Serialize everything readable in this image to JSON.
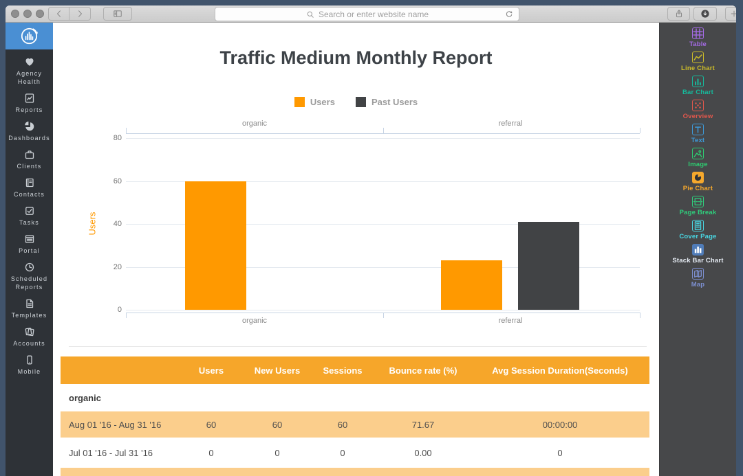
{
  "browser": {
    "search_placeholder": "Search or enter website name",
    "traffic_lights": [
      "close",
      "minimize",
      "zoom"
    ]
  },
  "colors": {
    "accent_orange": "#f6a62a",
    "row_highlight": "#fbce8c",
    "bar_orange": "#ff9900",
    "bar_dark": "#414345",
    "sidebar_bg": "#2e3237",
    "panel_bg": "#47484a",
    "logo_blue": "#4a8fd3",
    "frame_navy": "#41546c"
  },
  "sidebar": {
    "items": [
      {
        "label": "Agency Health",
        "icon": "heart-icon"
      },
      {
        "label": "Reports",
        "icon": "report-chart-icon"
      },
      {
        "label": "Dashboards",
        "icon": "pie-dashboard-icon"
      },
      {
        "label": "Clients",
        "icon": "briefcase-icon"
      },
      {
        "label": "Contacts",
        "icon": "address-book-icon"
      },
      {
        "label": "Tasks",
        "icon": "checkbox-icon"
      },
      {
        "label": "Portal",
        "icon": "portal-window-icon"
      },
      {
        "label": "Scheduled Reports",
        "icon": "clock-icon"
      },
      {
        "label": "Templates",
        "icon": "template-file-icon"
      },
      {
        "label": "Accounts",
        "icon": "pages-icon"
      },
      {
        "label": "Mobile",
        "icon": "smartphone-icon"
      }
    ]
  },
  "widgets_panel": {
    "items": [
      {
        "label": "Table",
        "color": "#a66be8",
        "icon": "table-grid-icon",
        "filled": false
      },
      {
        "label": "Line Chart",
        "color": "#ccbc29",
        "icon": "line-chart-icon",
        "filled": false
      },
      {
        "label": "Bar Chart",
        "color": "#16ba9c",
        "icon": "bar-chart-icon",
        "filled": false
      },
      {
        "label": "Overview",
        "color": "#e2574c",
        "icon": "overview-dots-icon",
        "filled": false
      },
      {
        "label": "Text",
        "color": "#3d9ad9",
        "icon": "text-icon",
        "filled": false
      },
      {
        "label": "Image",
        "color": "#2ecc71",
        "icon": "image-icon",
        "filled": false
      },
      {
        "label": "Pie Chart",
        "color": "#f5a82d",
        "icon": "pie-chart-icon",
        "filled": true
      },
      {
        "label": "Page Break",
        "color": "#2fce7c",
        "icon": "page-break-icon",
        "filled": false
      },
      {
        "label": "Cover Page",
        "color": "#49d6e2",
        "icon": "cover-page-icon",
        "filled": false
      },
      {
        "label": "Stack Bar Chart",
        "color": "#507cb8",
        "label_color": "#e9eff7",
        "icon": "stack-bar-chart-icon",
        "filled": true
      },
      {
        "label": "Map",
        "color": "#7c8fd0",
        "icon": "map-icon",
        "filled": false
      }
    ]
  },
  "report": {
    "title": "Traffic Medium Monthly Report"
  },
  "chart_data": {
    "type": "bar",
    "title": "Traffic Medium Monthly Report",
    "categories": [
      "organic",
      "referral"
    ],
    "series": [
      {
        "name": "Users",
        "color": "#ff9900",
        "values": [
          60,
          23
        ]
      },
      {
        "name": "Past Users",
        "color": "#414345",
        "values": [
          0,
          41
        ]
      }
    ],
    "xlabel": "",
    "ylabel": "Users",
    "yticks": [
      0,
      20,
      40,
      60,
      80
    ],
    "ylim": [
      0,
      80
    ],
    "grid": true,
    "legend_position": "top",
    "category_axis": "top_and_bottom"
  },
  "table": {
    "headers": [
      "",
      "Users",
      "New Users",
      "Sessions",
      "Bounce rate (%)",
      "Avg Session Duration(Seconds)"
    ],
    "sections": [
      {
        "label": "organic",
        "rows": [
          {
            "label": "Aug 01 '16 - Aug 31 '16",
            "values": [
              "60",
              "60",
              "60",
              "71.67",
              "00:00:00"
            ],
            "highlight": true
          },
          {
            "label": "Jul 01 '16 - Jul 31 '16",
            "values": [
              "0",
              "0",
              "0",
              "0.00",
              "0"
            ],
            "highlight": false
          }
        ]
      }
    ],
    "partial_next_row_visible": true
  }
}
